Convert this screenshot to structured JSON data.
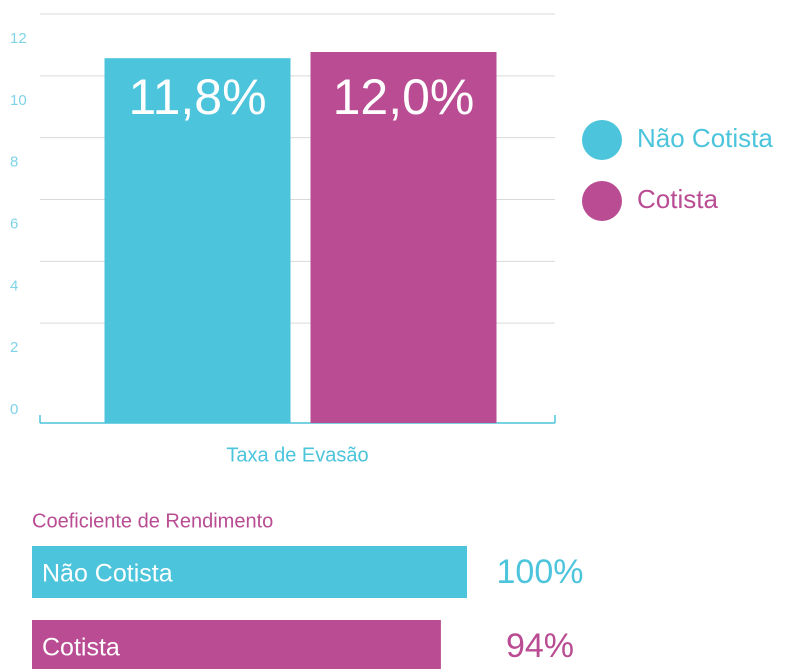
{
  "chart_data": [
    {
      "type": "bar",
      "categories": [
        "Taxa de Evasão"
      ],
      "series": [
        {
          "name": "Não Cotista",
          "color": "#4bc4dc",
          "values": [
            11.8
          ],
          "value_labels": [
            "11,8%"
          ]
        },
        {
          "name": "Cotista",
          "color": "#b94c92",
          "values": [
            12.0
          ],
          "value_labels": [
            "12,0%"
          ]
        }
      ],
      "ylim": [
        0,
        12
      ],
      "yticks": [
        0,
        2,
        4,
        6,
        8,
        10,
        12
      ],
      "grid": true,
      "legend": "right"
    },
    {
      "type": "hbar",
      "title": "Coeficiente de Rendimento",
      "categories": [
        "Não Cotista",
        "Cotista"
      ],
      "values": [
        100,
        94
      ],
      "value_labels": [
        "100%",
        "94%"
      ],
      "colors": [
        "#4bc4dc",
        "#b94c92"
      ]
    }
  ]
}
